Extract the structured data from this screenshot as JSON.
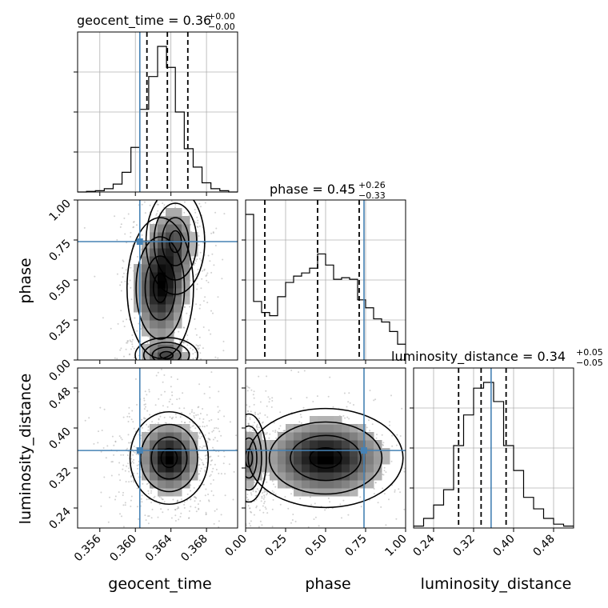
{
  "chart_data": {
    "type": "corner",
    "colors": {
      "truth": "#4682b4",
      "histogram": "#000000",
      "density": "#000000",
      "samples": "#9a9a9a"
    },
    "parameters": [
      {
        "name": "geocent_time",
        "range": [
          0.3535,
          0.3715
        ],
        "ticks": [
          0.356,
          0.36,
          0.364,
          0.368
        ],
        "truth": 0.3605
      },
      {
        "name": "phase",
        "range": [
          0.0,
          1.0
        ],
        "ticks": [
          0.0,
          0.25,
          0.5,
          0.75,
          1.0
        ],
        "truth": 0.74
      },
      {
        "name": "luminosity_distance",
        "range": [
          0.2,
          0.52
        ],
        "ticks": [
          0.24,
          0.32,
          0.4,
          0.48
        ],
        "truth": 0.355
      }
    ],
    "tick_labels": {
      "geocent_time": [
        "0.356",
        "0.360",
        "0.364",
        "0.368"
      ],
      "phase": [
        "0.00",
        "0.25",
        "0.50",
        "0.75",
        "1.00"
      ],
      "luminosity_distance": [
        "0.24",
        "0.32",
        "0.40",
        "0.48"
      ]
    },
    "titles": [
      {
        "main": "geocent_time = 0.36",
        "upper": "+0.00",
        "lower": "−0.00"
      },
      {
        "main": "phase = 0.45",
        "upper": "+0.26",
        "lower": "−0.33"
      },
      {
        "main": "luminosity_distance = 0.34",
        "upper": "+0.05",
        "lower": "−0.05"
      }
    ],
    "marginals": [
      {
        "param": "geocent_time",
        "quantiles": [
          0.3613,
          0.3636,
          0.3659
        ],
        "bin_edges": [
          0.3535,
          0.3545,
          0.3555,
          0.3565,
          0.3575,
          0.3585,
          0.3595,
          0.3605,
          0.3615,
          0.3625,
          0.3635,
          0.3645,
          0.3655,
          0.3665,
          0.3675,
          0.3685,
          0.3695,
          0.3705,
          0.3715
        ],
        "counts": [
          0,
          1,
          2,
          5,
          12,
          30,
          68,
          126,
          176,
          222,
          190,
          122,
          66,
          38,
          14,
          5,
          2,
          0
        ]
      },
      {
        "param": "phase",
        "quantiles": [
          0.12,
          0.45,
          0.71
        ],
        "bin_edges": [
          0.0,
          0.05,
          0.1,
          0.15,
          0.2,
          0.25,
          0.3,
          0.35,
          0.4,
          0.45,
          0.5,
          0.55,
          0.6,
          0.65,
          0.7,
          0.75,
          0.8,
          0.85,
          0.9,
          0.95,
          1.0
        ],
        "counts": [
          0.92,
          0.37,
          0.3,
          0.28,
          0.4,
          0.49,
          0.53,
          0.55,
          0.58,
          0.67,
          0.6,
          0.51,
          0.52,
          0.51,
          0.38,
          0.33,
          0.26,
          0.24,
          0.18,
          0.1
        ]
      },
      {
        "param": "luminosity_distance",
        "quantiles": [
          0.29,
          0.335,
          0.385
        ],
        "bin_edges": [
          0.2,
          0.22,
          0.24,
          0.26,
          0.28,
          0.3,
          0.32,
          0.34,
          0.36,
          0.38,
          0.4,
          0.42,
          0.44,
          0.46,
          0.48,
          0.5,
          0.52
        ],
        "counts": [
          0.01,
          0.05,
          0.12,
          0.2,
          0.43,
          0.59,
          0.73,
          0.76,
          0.66,
          0.43,
          0.3,
          0.16,
          0.1,
          0.05,
          0.02,
          0.01
        ]
      }
    ],
    "pairs": [
      {
        "x": "geocent_time",
        "y": "phase",
        "modes": [
          {
            "x": 0.3635,
            "y": 0.03,
            "sx": 0.0016,
            "sy": 0.05,
            "weight": 0.3
          },
          {
            "x": 0.3628,
            "y": 0.45,
            "sx": 0.0017,
            "sy": 0.2,
            "weight": 0.45
          },
          {
            "x": 0.3645,
            "y": 0.74,
            "sx": 0.0015,
            "sy": 0.15,
            "weight": 0.25
          }
        ]
      },
      {
        "x": "geocent_time",
        "y": "luminosity_distance",
        "modes": [
          {
            "x": 0.3638,
            "y": 0.34,
            "sx": 0.002,
            "sy": 0.042,
            "weight": 1.0
          }
        ]
      },
      {
        "x": "phase",
        "y": "luminosity_distance",
        "modes": [
          {
            "x": 0.02,
            "y": 0.34,
            "sx": 0.05,
            "sy": 0.04,
            "weight": 0.3
          },
          {
            "x": 0.5,
            "y": 0.34,
            "sx": 0.22,
            "sy": 0.045,
            "weight": 0.7
          }
        ]
      }
    ]
  }
}
